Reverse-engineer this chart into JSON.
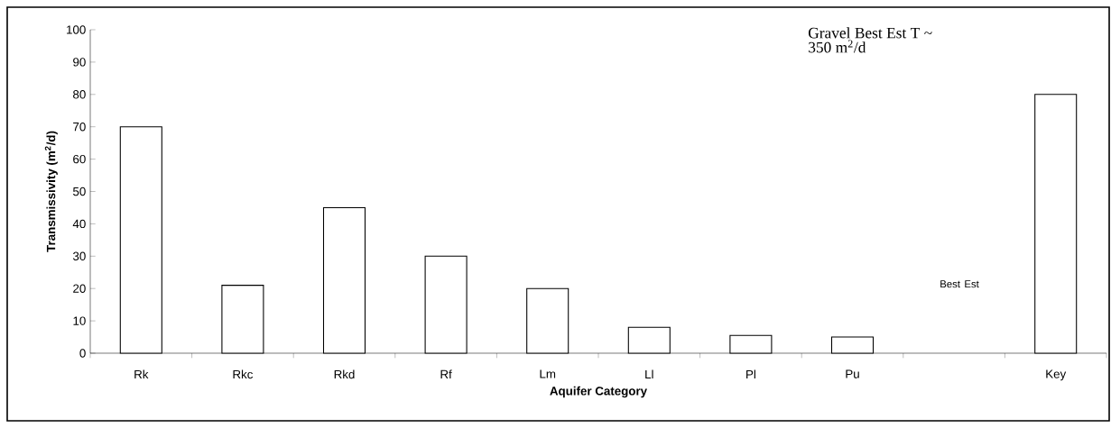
{
  "chart_data": {
    "type": "bar",
    "xlabel": "Aquifer Category",
    "ylabel": "Transmissivity (m$^{2}$/d)",
    "categories": [
      "Rk",
      "Rkc",
      "Rkd",
      "Rf",
      "Lm",
      "Ll",
      "Pl",
      "Pu",
      null,
      "Key"
    ],
    "values": [
      70,
      21,
      45,
      30,
      20,
      8,
      5.5,
      5,
      null,
      80
    ],
    "color": "#ffffff",
    "ylim": [
      0,
      100
    ],
    "yticks": [
      0,
      10,
      20,
      30,
      40,
      50,
      60,
      70,
      80,
      90,
      100
    ],
    "grid": false,
    "annotations": [
      "Gravel Best Est T ~ 350 m$^{2}$/d",
      "Best Est"
    ]
  }
}
